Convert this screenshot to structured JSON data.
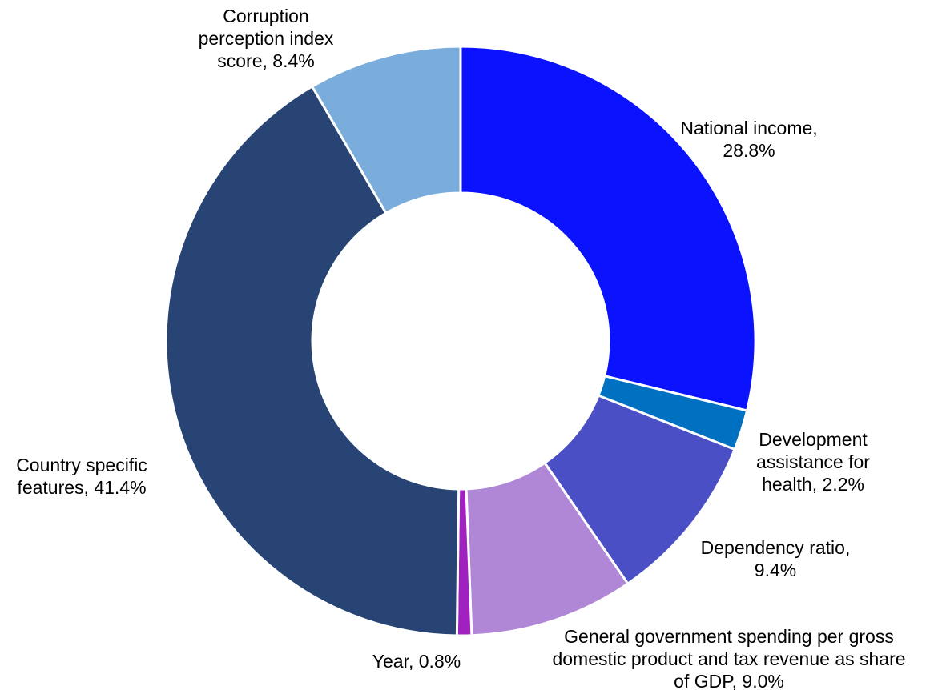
{
  "chart_data": {
    "type": "pie",
    "variant": "donut",
    "start_angle_deg": 0,
    "direction": "clockwise",
    "legend": "none",
    "slices": [
      {
        "name": "National income",
        "value": 28.8,
        "color": "#0b12fe",
        "label_lines": [
          "National income,",
          "28.8%"
        ]
      },
      {
        "name": "Development assistance for health",
        "value": 2.2,
        "color": "#0070c0",
        "label_lines": [
          "Development",
          "assistance for",
          "health, 2.2%"
        ]
      },
      {
        "name": "Dependency ratio",
        "value": 9.4,
        "color": "#4a4fc6",
        "label_lines": [
          "Dependency ratio,",
          "9.4%"
        ]
      },
      {
        "name": "General government spending per gross domestic product and tax revenue as share of GDP",
        "value": 9.0,
        "color": "#b087d6",
        "label_lines": [
          "General government spending per gross",
          "domestic product and tax revenue as share",
          "of GDP, 9.0%"
        ]
      },
      {
        "name": "Year",
        "value": 0.8,
        "color": "#a020c0",
        "label_lines": [
          "Year, 0.8%"
        ]
      },
      {
        "name": "Country specific features",
        "value": 41.4,
        "color": "#274475",
        "label_lines": [
          "Country specific",
          "features, 41.4%"
        ]
      },
      {
        "name": "Corruption perception index score",
        "value": 8.4,
        "color": "#7aaddb",
        "label_lines": [
          "Corruption",
          "perception index",
          "score, 8.4%"
        ]
      }
    ]
  }
}
